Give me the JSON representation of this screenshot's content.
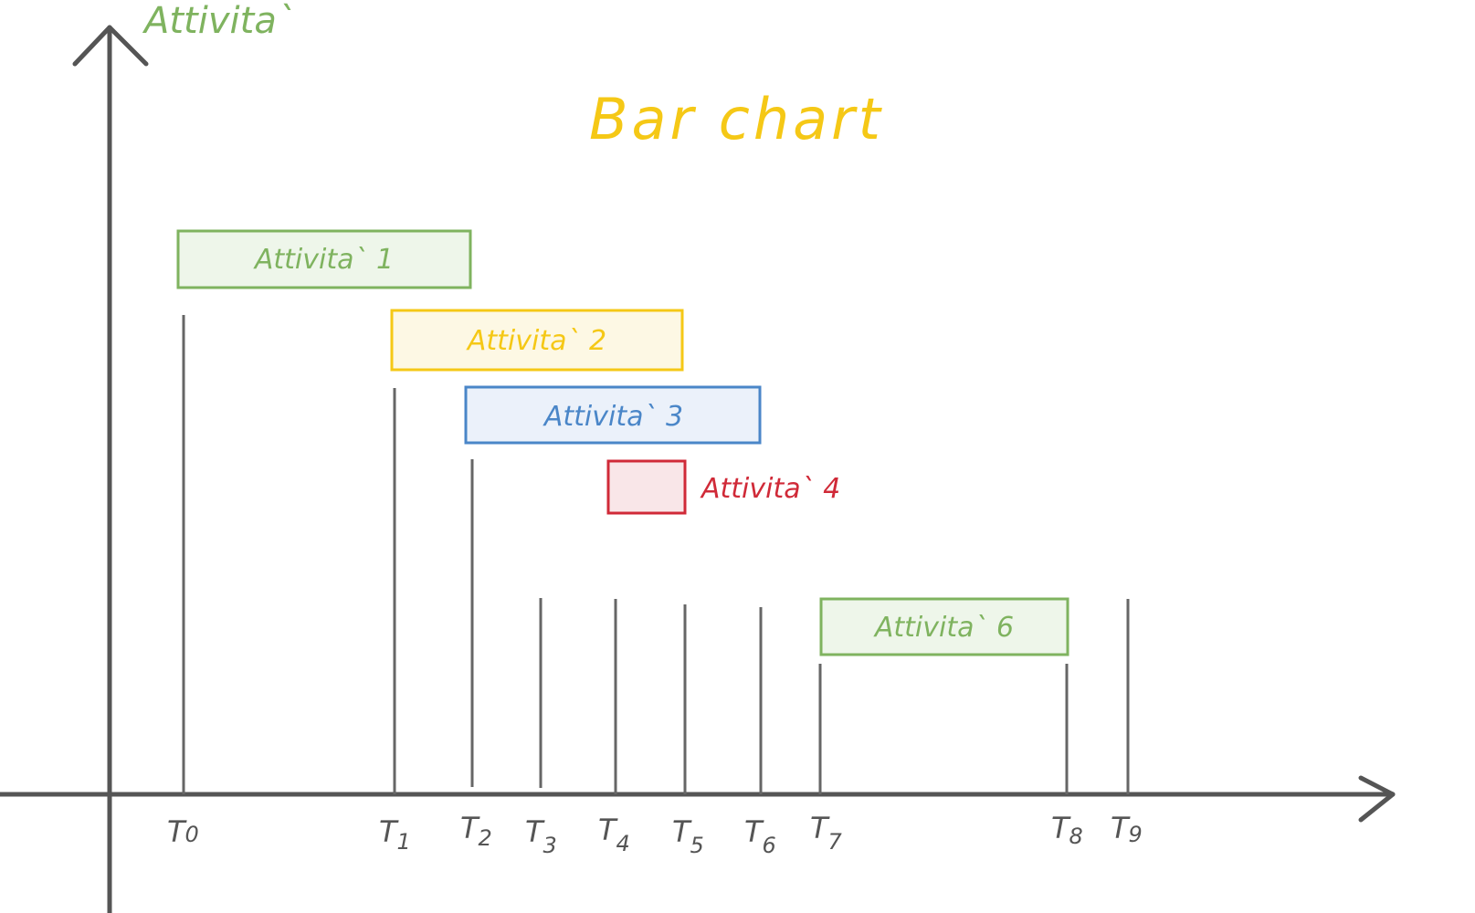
{
  "title": "Bar chart",
  "y_axis_label": "Attivita`",
  "colors": {
    "axis": "#555555",
    "tick": "#666666",
    "title": "#f5c816",
    "green": "#7fb35f",
    "green_fill": "#eef6ea",
    "yellow": "#f5c816",
    "yellow_fill": "#fdf8e4",
    "blue": "#4a86c8",
    "blue_fill": "#ebf1fa",
    "red": "#d02a38",
    "red_fill": "#f9e6e8",
    "label_grey": "#555555"
  },
  "time_points": [
    {
      "label": "T",
      "sub": "0"
    },
    {
      "label": "T",
      "sub": "1"
    },
    {
      "label": "T",
      "sub": "2"
    },
    {
      "label": "T",
      "sub": "3"
    },
    {
      "label": "T",
      "sub": "4"
    },
    {
      "label": "T",
      "sub": "5"
    },
    {
      "label": "T",
      "sub": "6"
    },
    {
      "label": "T",
      "sub": "7"
    },
    {
      "label": "T",
      "sub": "8"
    },
    {
      "label": "T",
      "sub": "9"
    }
  ],
  "activities": [
    {
      "label": "Attivita` 1",
      "start": "T0",
      "end": "T2",
      "color": "green"
    },
    {
      "label": "Attivita` 2",
      "start": "T1",
      "end": "T5",
      "color": "yellow"
    },
    {
      "label": "Attivita` 3",
      "start": "T2",
      "end": "T6",
      "color": "blue"
    },
    {
      "label": "Attivita` 4",
      "start": "T4",
      "end": "T5",
      "color": "red"
    },
    {
      "label": "Attivita` 6",
      "start": "T7",
      "end": "T8",
      "color": "green"
    }
  ]
}
